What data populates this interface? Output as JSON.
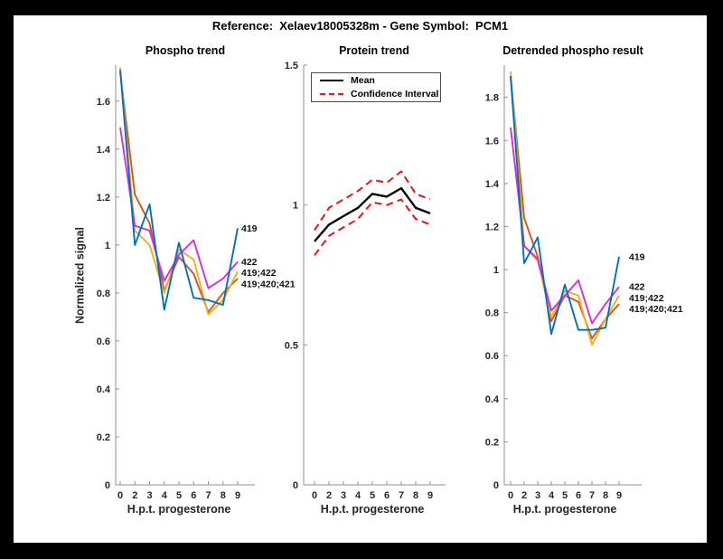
{
  "figure": {
    "title": "Reference:  Xelaev18005328m - Gene Symbol:  PCM1"
  },
  "chart_data": [
    {
      "name": "phospho-trend",
      "type": "line",
      "title": "Phospho trend",
      "xlabel": "H.p.t. progesterone",
      "ylabel": "Normalized signal",
      "x": [
        0,
        2,
        3,
        4,
        5,
        6,
        7,
        8,
        9
      ],
      "x_tick_labels": [
        "0",
        "2",
        "3",
        "4",
        "5",
        "6",
        "7",
        "8",
        "9"
      ],
      "y_tick_labels": [
        "0",
        "0.2",
        "0.4",
        "0.6",
        "0.8",
        "1",
        "1.2",
        "1.4",
        "1.6"
      ],
      "ylim": [
        0,
        1.75
      ],
      "grid": false,
      "legend_position": "none",
      "series": [
        {
          "name": "419;420;421",
          "color": "#D95319",
          "values": [
            1.72,
            1.21,
            1.09,
            0.81,
            0.95,
            0.88,
            0.72,
            0.8,
            0.86
          ]
        },
        {
          "name": "419;422",
          "color": "#EDB120",
          "values": [
            1.74,
            1.06,
            1.0,
            0.8,
            0.98,
            0.94,
            0.71,
            0.77,
            0.89
          ]
        },
        {
          "name": "422",
          "color": "#DE29DE",
          "values": [
            1.49,
            1.08,
            1.06,
            0.85,
            0.96,
            1.02,
            0.82,
            0.86,
            0.93
          ]
        },
        {
          "name": "419",
          "color": "#0072BD",
          "values": [
            1.73,
            1.0,
            1.17,
            0.73,
            1.01,
            0.78,
            0.77,
            0.75,
            1.07
          ]
        }
      ]
    },
    {
      "name": "protein-trend",
      "type": "line",
      "title": "Protein trend",
      "xlabel": "H.p.t. progesterone",
      "ylabel": "",
      "x": [
        0,
        2,
        3,
        4,
        5,
        6,
        7,
        8,
        9
      ],
      "x_tick_labels": [
        "0",
        "2",
        "3",
        "4",
        "5",
        "6",
        "7",
        "8",
        "9"
      ],
      "y_tick_labels": [
        "0",
        "0.5",
        "1",
        "1.5"
      ],
      "ylim": [
        0,
        1.5
      ],
      "grid": false,
      "legend_position": "top-left",
      "legend": [
        {
          "label": "Mean"
        },
        {
          "label": "Confidence Interval"
        }
      ],
      "series": [
        {
          "name": "CI upper",
          "color": "#EF1111",
          "dash": true,
          "width": 2,
          "values": [
            0.91,
            0.99,
            1.02,
            1.05,
            1.09,
            1.08,
            1.12,
            1.04,
            1.02
          ]
        },
        {
          "name": "CI lower",
          "color": "#EF1111",
          "dash": true,
          "width": 2,
          "values": [
            0.82,
            0.89,
            0.92,
            0.95,
            1.01,
            1.0,
            1.02,
            0.95,
            0.93
          ]
        },
        {
          "name": "Mean",
          "color": "#000000",
          "dash": false,
          "width": 2.4,
          "values": [
            0.87,
            0.93,
            0.96,
            0.99,
            1.04,
            1.03,
            1.06,
            0.99,
            0.97
          ]
        }
      ]
    },
    {
      "name": "detrended-phospho-result",
      "type": "line",
      "title": "Detrended phospho result",
      "xlabel": "H.p.t. progesterone",
      "ylabel": "",
      "x": [
        0,
        2,
        3,
        4,
        5,
        6,
        7,
        8,
        9
      ],
      "x_tick_labels": [
        "0",
        "2",
        "3",
        "4",
        "5",
        "6",
        "7",
        "8",
        "9"
      ],
      "y_tick_labels": [
        "0",
        "0.2",
        "0.4",
        "0.6",
        "0.8",
        "1",
        "1.2",
        "1.4",
        "1.6",
        "1.8"
      ],
      "ylim": [
        0,
        1.95
      ],
      "grid": false,
      "legend_position": "none",
      "series": [
        {
          "name": "419;420;421",
          "color": "#D95319",
          "values": [
            1.9,
            1.24,
            1.06,
            0.76,
            0.88,
            0.85,
            0.68,
            0.77,
            0.84
          ]
        },
        {
          "name": "419;422",
          "color": "#EDB120",
          "values": [
            1.92,
            1.11,
            1.04,
            0.78,
            0.9,
            0.88,
            0.65,
            0.77,
            0.88
          ]
        },
        {
          "name": "422",
          "color": "#DE29DE",
          "values": [
            1.66,
            1.11,
            1.05,
            0.81,
            0.88,
            0.95,
            0.75,
            0.84,
            0.92
          ]
        },
        {
          "name": "419",
          "color": "#0072BD",
          "values": [
            1.9,
            1.03,
            1.15,
            0.7,
            0.93,
            0.72,
            0.72,
            0.73,
            1.06
          ]
        }
      ]
    }
  ]
}
